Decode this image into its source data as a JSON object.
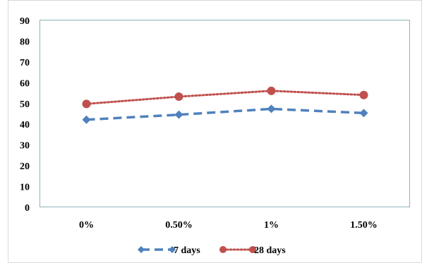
{
  "chart_data": {
    "type": "line",
    "categories": [
      "0%",
      "0.50%",
      "1%",
      "1.50%"
    ],
    "ylim": [
      0,
      90
    ],
    "yticks": [
      0,
      10,
      20,
      30,
      40,
      50,
      60,
      70,
      80,
      90
    ],
    "grid": false,
    "legend_position": "bottom",
    "series": [
      {
        "name": "7 days",
        "values": [
          42.2,
          44.6,
          47.4,
          45.4
        ],
        "color": "#4F81BD",
        "marker": "diamond",
        "line_style": "dashed"
      },
      {
        "name": "28 days",
        "values": [
          49.8,
          53.3,
          56.1,
          54.1
        ],
        "color": "#C0504D",
        "marker": "circle",
        "line_style": "dotted"
      }
    ]
  }
}
